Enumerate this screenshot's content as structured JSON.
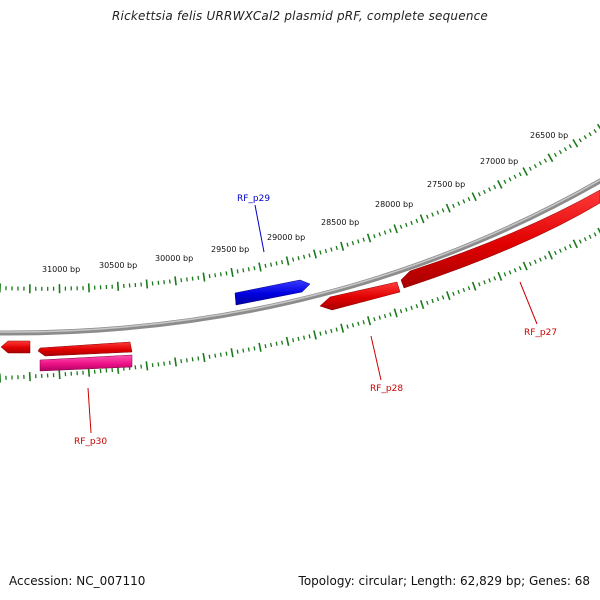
{
  "header": {
    "title": "Rickettsia felis URRWXCal2 plasmid pRF, complete sequence"
  },
  "footer": {
    "accession": "Accession: NC_007110",
    "summary": "Topology: circular; Length: 62,829 bp; Genes: 68"
  },
  "colors": {
    "backbone": "#8c8c8c",
    "tick": "#1a7a1a",
    "forward_gene": "#0000dd",
    "reverse_gene": "#ee0000",
    "other_gene": "#ee1188",
    "label_blue": "#0000cc",
    "label_red": "#cc0000"
  },
  "scale": {
    "tick_labels": [
      "26500 bp",
      "27000 bp",
      "27500 bp",
      "28000 bp",
      "28500 bp",
      "29000 bp",
      "29500 bp",
      "30000 bp",
      "30500 bp",
      "31000 bp"
    ]
  },
  "genes": [
    {
      "name": "RF_p27",
      "strand": "reverse",
      "color": "reverse_gene",
      "label_color": "label_red"
    },
    {
      "name": "RF_p28",
      "strand": "reverse",
      "color": "reverse_gene",
      "label_color": "label_red"
    },
    {
      "name": "RF_p29",
      "strand": "forward",
      "color": "forward_gene",
      "label_color": "label_blue"
    },
    {
      "name": "RF_p30",
      "strand": "reverse",
      "color": "other_gene",
      "label_color": "label_red"
    }
  ]
}
